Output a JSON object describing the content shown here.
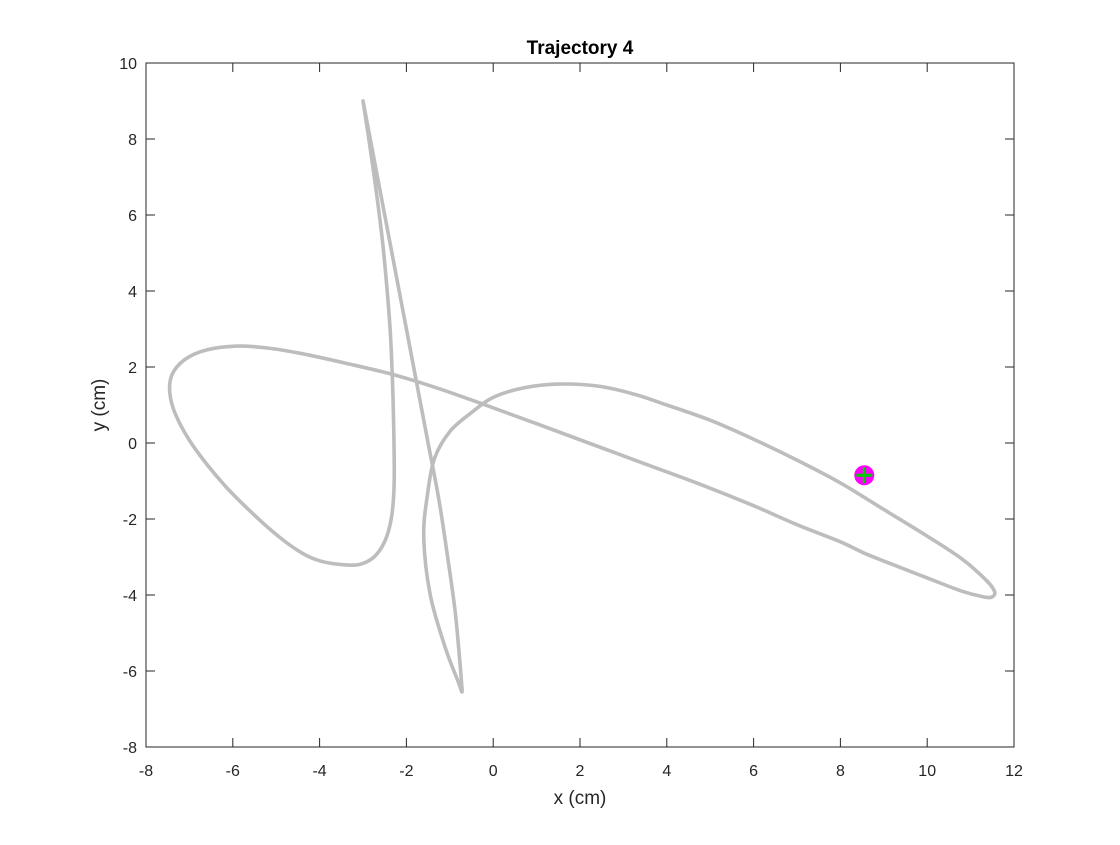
{
  "chart_data": {
    "type": "line",
    "title": "Trajectory 4",
    "xlabel": "x (cm)",
    "ylabel": "y (cm)",
    "xlim": [
      -8,
      12
    ],
    "ylim": [
      -8,
      10
    ],
    "xticks": [
      -8,
      -6,
      -4,
      -2,
      0,
      2,
      4,
      6,
      8,
      10,
      12
    ],
    "yticks": [
      -8,
      -6,
      -4,
      -2,
      0,
      2,
      4,
      6,
      8,
      10
    ],
    "grid": false,
    "box": true,
    "colors": {
      "trajectory": "#bdbdbd",
      "marker_fill": "#ff00ff",
      "marker_cross": "#00cc00",
      "axes": "#262626"
    },
    "series": [
      {
        "style": "line",
        "x": [
          -3.0,
          -2.84,
          -2.68,
          -2.55,
          -2.45,
          -2.37,
          -2.32,
          -2.29,
          -2.28,
          -2.3,
          -2.35,
          -2.45,
          -2.6,
          -2.8,
          -3.1,
          -3.5,
          -4.0,
          -4.4,
          -4.9,
          -5.5,
          -6.2,
          -6.9,
          -7.3,
          -7.45,
          -7.4,
          -7.1,
          -6.6,
          -5.9,
          -5.2,
          -4.4,
          -3.4,
          -2.3,
          -1.3,
          -0.3,
          0.9,
          2.2,
          3.5,
          4.8,
          6.0,
          7.0,
          8.0,
          8.55,
          9.1,
          10.0,
          10.8,
          11.3,
          11.5,
          11.55,
          11.35,
          10.8,
          10.0,
          9.0,
          8.0,
          7.0,
          6.0,
          5.0,
          4.0,
          3.2,
          2.4,
          1.5,
          0.7,
          0.0,
          -0.5,
          -1.0,
          -1.35,
          -1.52,
          -1.6,
          -1.45,
          -1.1,
          -0.8,
          -0.72,
          -0.73,
          -0.78,
          -0.88,
          -1.05,
          -1.25,
          -1.5,
          -1.75,
          -2.0,
          -2.25,
          -2.5,
          -2.75,
          -3.0
        ],
        "y": [
          9.0,
          7.8,
          6.5,
          5.3,
          4.1,
          2.9,
          1.6,
          0.3,
          -0.9,
          -1.5,
          -2.0,
          -2.45,
          -2.8,
          -3.05,
          -3.2,
          -3.2,
          -3.1,
          -2.9,
          -2.5,
          -1.9,
          -1.1,
          -0.1,
          0.7,
          1.3,
          1.8,
          2.2,
          2.45,
          2.55,
          2.5,
          2.35,
          2.1,
          1.8,
          1.45,
          1.05,
          0.55,
          0.0,
          -0.55,
          -1.1,
          -1.65,
          -2.15,
          -2.6,
          -2.9,
          -3.15,
          -3.55,
          -3.9,
          -4.05,
          -4.05,
          -3.9,
          -3.6,
          -3.05,
          -2.45,
          -1.75,
          -1.05,
          -0.45,
          0.1,
          0.6,
          1.0,
          1.3,
          1.5,
          1.55,
          1.45,
          1.2,
          0.8,
          0.3,
          -0.4,
          -1.4,
          -2.5,
          -4.0,
          -5.4,
          -6.3,
          -6.55,
          -6.3,
          -5.6,
          -4.4,
          -3.0,
          -1.5,
          0.0,
          1.5,
          3.0,
          4.5,
          6.0,
          7.5,
          9.0
        ]
      }
    ],
    "marker": {
      "x": 8.55,
      "y": -0.85
    }
  }
}
